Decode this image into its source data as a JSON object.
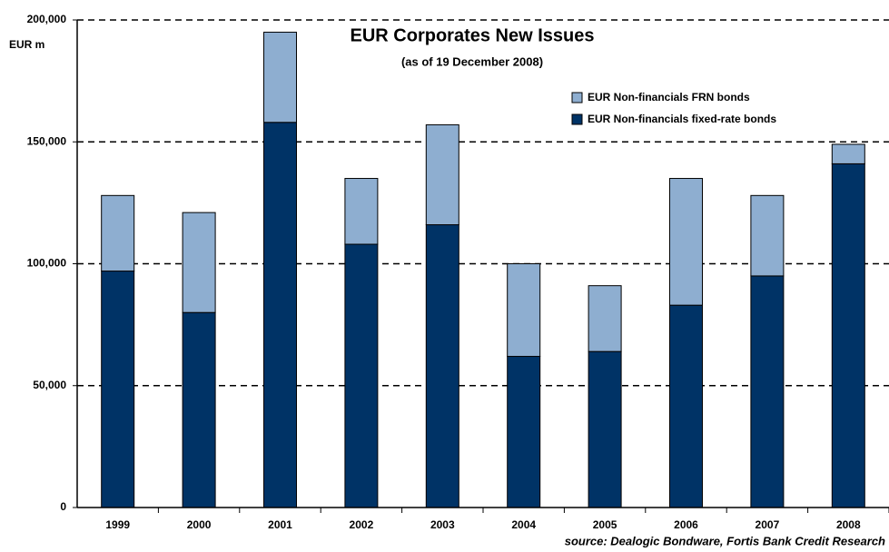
{
  "chart_data": {
    "type": "stacked-bar",
    "title": "EUR Corporates New Issues",
    "subtitle": "(as of 19 December 2008)",
    "y_label": "EUR m",
    "source": "source: Dealogic Bondware, Fortis Bank Credit Research",
    "categories": [
      "1999",
      "2000",
      "2001",
      "2002",
      "2003",
      "2004",
      "2005",
      "2006",
      "2007",
      "2008"
    ],
    "series": [
      {
        "name": "EUR Non-financials fixed-rate bonds",
        "color": "#003366",
        "values": [
          97000,
          80000,
          158000,
          108000,
          116000,
          62000,
          64000,
          83000,
          95000,
          141000
        ]
      },
      {
        "name": "EUR Non-financials FRN bonds",
        "color": "#8eaed0",
        "values": [
          31000,
          41000,
          37000,
          27000,
          41000,
          38000,
          27000,
          52000,
          33000,
          8000
        ]
      }
    ],
    "ylim": [
      0,
      200000
    ],
    "yticks": [
      0,
      {
        "value": 50000,
        "label": "50,000"
      },
      {
        "value": 100000,
        "label": "100,000"
      },
      {
        "value": 150000,
        "label": "150,000"
      },
      {
        "value": 200000,
        "label": "200,000"
      }
    ],
    "grid": true
  }
}
